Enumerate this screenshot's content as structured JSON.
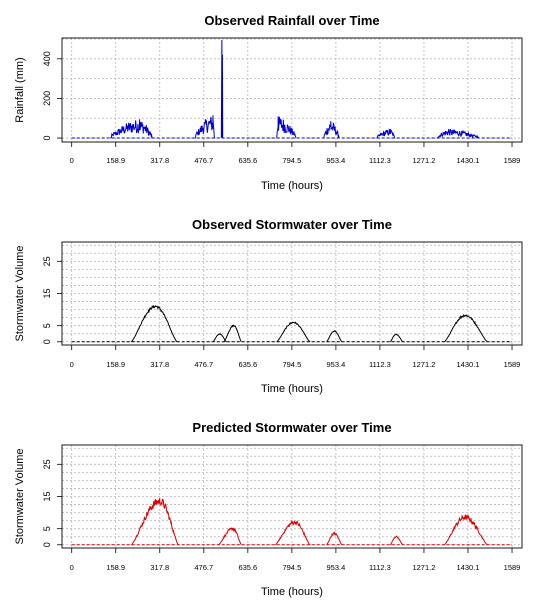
{
  "chart_data": [
    {
      "type": "line",
      "title": "Observed Rainfall over Time",
      "xlabel": "Time (hours)",
      "ylabel": "Rainfall (mm)",
      "xlim": [
        -35,
        1625
      ],
      "ylim": [
        -20,
        505
      ],
      "xticks": [
        "0",
        "158.9",
        "317.8",
        "476.7",
        "635.6",
        "794.5",
        "953.4",
        "1112.3",
        "1271.2",
        "1430.1",
        "1589"
      ],
      "yticks": [
        0,
        200,
        400
      ],
      "grid": true,
      "series": [
        {
          "color": "#0000cc",
          "line_style": "solid-spiky",
          "baseline_line_style": "dashed",
          "baseline": [
            0,
            1589
          ],
          "events": [
            {
              "start": 140,
              "end": 290,
              "peak": 95,
              "peak_x": 245
            },
            {
              "start": 445,
              "end": 515,
              "peak": 115,
              "peak_x": 510
            },
            {
              "start": 540,
              "end": 545,
              "peak": 495,
              "peak_x": 542
            },
            {
              "start": 740,
              "end": 810,
              "peak": 110,
              "peak_x": 745
            },
            {
              "start": 910,
              "end": 965,
              "peak": 85,
              "peak_x": 935
            },
            {
              "start": 1100,
              "end": 1165,
              "peak": 45,
              "peak_x": 1150
            },
            {
              "start": 1320,
              "end": 1470,
              "peak": 45,
              "peak_x": 1360
            }
          ]
        }
      ]
    },
    {
      "type": "line",
      "title": "Observed Stormwater over Time",
      "xlabel": "Time (hours)",
      "ylabel": "Stormwater Volume",
      "xlim": [
        -35,
        1625
      ],
      "ylim": [
        -1,
        31
      ],
      "xticks": [
        "0",
        "158.9",
        "317.8",
        "476.7",
        "635.6",
        "794.5",
        "953.4",
        "1112.3",
        "1271.2",
        "1430.1",
        "1589"
      ],
      "yticks": [
        0,
        5,
        15,
        25
      ],
      "grid": true,
      "series": [
        {
          "color": "#000000",
          "line_style": "solid",
          "baseline_line_style": "dashed",
          "baseline": [
            0,
            1589
          ],
          "events": [
            {
              "start": 215,
              "end": 380,
              "peak": 11,
              "peak_x": 302
            },
            {
              "start": 510,
              "end": 558,
              "peak": 2.4,
              "peak_x": 534
            },
            {
              "start": 550,
              "end": 612,
              "peak": 5,
              "peak_x": 585
            },
            {
              "start": 740,
              "end": 860,
              "peak": 6,
              "peak_x": 800
            },
            {
              "start": 920,
              "end": 975,
              "peak": 3.3,
              "peak_x": 948
            },
            {
              "start": 1150,
              "end": 1195,
              "peak": 2.3,
              "peak_x": 1170
            },
            {
              "start": 1345,
              "end": 1500,
              "peak": 8.2,
              "peak_x": 1420
            }
          ]
        }
      ]
    },
    {
      "type": "line",
      "title": "Predicted Stormwater over Time",
      "xlabel": "Time (hours)",
      "ylabel": "Stormwater Volume",
      "xlim": [
        -35,
        1625
      ],
      "ylim": [
        -1,
        31
      ],
      "xticks": [
        "0",
        "158.9",
        "317.8",
        "476.7",
        "635.6",
        "794.5",
        "953.4",
        "1112.3",
        "1271.2",
        "1430.1",
        "1589"
      ],
      "yticks": [
        0,
        5,
        15,
        25
      ],
      "grid": true,
      "series": [
        {
          "color": "#dd0000",
          "line_style": "solid-jagged",
          "baseline_line_style": "dashed",
          "baseline": [
            0,
            1589
          ],
          "events": [
            {
              "start": 215,
              "end": 385,
              "peak": 13.5,
              "peak_x": 318
            },
            {
              "start": 530,
              "end": 612,
              "peak": 5,
              "peak_x": 582
            },
            {
              "start": 735,
              "end": 860,
              "peak": 7,
              "peak_x": 805
            },
            {
              "start": 920,
              "end": 975,
              "peak": 3.5,
              "peak_x": 948
            },
            {
              "start": 1150,
              "end": 1195,
              "peak": 2.5,
              "peak_x": 1170
            },
            {
              "start": 1345,
              "end": 1500,
              "peak": 8.5,
              "peak_x": 1420
            }
          ]
        }
      ]
    }
  ]
}
